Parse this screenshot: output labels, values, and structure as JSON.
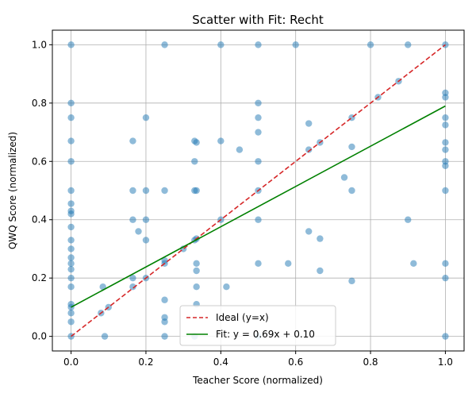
{
  "chart_data": {
    "type": "scatter",
    "title": "Scatter with Fit: Recht",
    "xlabel": "Teacher Score (normalized)",
    "ylabel": "QWQ Score (normalized)",
    "xlim": [
      -0.05,
      1.05
    ],
    "ylim": [
      -0.05,
      1.05
    ],
    "x_ticks": [
      "0.0",
      "0.2",
      "0.4",
      "0.6",
      "0.8",
      "1.0"
    ],
    "y_ticks": [
      "0.0",
      "0.2",
      "0.4",
      "0.6",
      "0.8",
      "1.0"
    ],
    "grid": true,
    "legend_position": "lower-center",
    "colors": {
      "points": "#1f77b4",
      "ideal": "#d62728",
      "fit": "#008000"
    },
    "lines": [
      {
        "name": "Ideal (y=x)",
        "style": "dashed",
        "color": "#d62728",
        "x": [
          0,
          1
        ],
        "y": [
          0,
          1
        ]
      },
      {
        "name": "Fit: y = 0.69x + 0.10",
        "style": "solid",
        "color": "#008000",
        "x": [
          0,
          1
        ],
        "y": [
          0.1,
          0.79
        ]
      }
    ],
    "points": [
      [
        0,
        0
      ],
      [
        0,
        0.05
      ],
      [
        0,
        0.08
      ],
      [
        0,
        0.1
      ],
      [
        0,
        0.11
      ],
      [
        0,
        0.17
      ],
      [
        0,
        0.2
      ],
      [
        0,
        0.23
      ],
      [
        0,
        0.25
      ],
      [
        0,
        0.27
      ],
      [
        0,
        0.3
      ],
      [
        0,
        0.33
      ],
      [
        0,
        0.375
      ],
      [
        0,
        0.42
      ],
      [
        0,
        0.43
      ],
      [
        0,
        0.455
      ],
      [
        0,
        0.5
      ],
      [
        0,
        0.6
      ],
      [
        0,
        0.67
      ],
      [
        0,
        0.75
      ],
      [
        0,
        0.8
      ],
      [
        0,
        1
      ],
      [
        0.08,
        0.08
      ],
      [
        0.085,
        0.17
      ],
      [
        0.09,
        0
      ],
      [
        0.1,
        0.1
      ],
      [
        0.165,
        0.17
      ],
      [
        0.165,
        0.2
      ],
      [
        0.165,
        0.4
      ],
      [
        0.165,
        0.5
      ],
      [
        0.165,
        0.67
      ],
      [
        0.18,
        0.36
      ],
      [
        0.2,
        0.2
      ],
      [
        0.2,
        0.33
      ],
      [
        0.2,
        0.4
      ],
      [
        0.2,
        0.5
      ],
      [
        0.2,
        0.75
      ],
      [
        0.25,
        0
      ],
      [
        0.25,
        0.05
      ],
      [
        0.25,
        0.065
      ],
      [
        0.25,
        0.125
      ],
      [
        0.25,
        0.25
      ],
      [
        0.25,
        0.26
      ],
      [
        0.25,
        0.5
      ],
      [
        0.25,
        1
      ],
      [
        0.3,
        0.3
      ],
      [
        0.33,
        0
      ],
      [
        0.33,
        0.33
      ],
      [
        0.33,
        0.5
      ],
      [
        0.33,
        0.6
      ],
      [
        0.33,
        0.67
      ],
      [
        0.335,
        0.11
      ],
      [
        0.335,
        0.17
      ],
      [
        0.335,
        0.225
      ],
      [
        0.335,
        0.25
      ],
      [
        0.335,
        0.335
      ],
      [
        0.335,
        0.5
      ],
      [
        0.335,
        0.665
      ],
      [
        0.4,
        0.4
      ],
      [
        0.4,
        0.67
      ],
      [
        0.4,
        1
      ],
      [
        0.415,
        0.17
      ],
      [
        0.45,
        0.64
      ],
      [
        0.5,
        0
      ],
      [
        0.5,
        0.25
      ],
      [
        0.5,
        0.4
      ],
      [
        0.5,
        0.5
      ],
      [
        0.5,
        0.6
      ],
      [
        0.5,
        0.7
      ],
      [
        0.5,
        0.75
      ],
      [
        0.5,
        0.8
      ],
      [
        0.5,
        1
      ],
      [
        0.58,
        0.25
      ],
      [
        0.6,
        1
      ],
      [
        0.635,
        0.36
      ],
      [
        0.635,
        0.64
      ],
      [
        0.635,
        0.73
      ],
      [
        0.665,
        0.225
      ],
      [
        0.665,
        0.335
      ],
      [
        0.665,
        0.665
      ],
      [
        0.73,
        0.545
      ],
      [
        0.75,
        0.19
      ],
      [
        0.75,
        0.5
      ],
      [
        0.75,
        0.65
      ],
      [
        0.75,
        0.75
      ],
      [
        0.8,
        1
      ],
      [
        0.82,
        0.82
      ],
      [
        0.875,
        0.875
      ],
      [
        0.9,
        0.4
      ],
      [
        0.9,
        1
      ],
      [
        0.915,
        0.25
      ],
      [
        1,
        0
      ],
      [
        1,
        0.2
      ],
      [
        1,
        0.25
      ],
      [
        1,
        0.5
      ],
      [
        1,
        0.585
      ],
      [
        1,
        0.6
      ],
      [
        1,
        0.64
      ],
      [
        1,
        0.665
      ],
      [
        1,
        0.725
      ],
      [
        1,
        0.75
      ],
      [
        1,
        0.82
      ],
      [
        1,
        0.835
      ],
      [
        1,
        1
      ]
    ]
  }
}
